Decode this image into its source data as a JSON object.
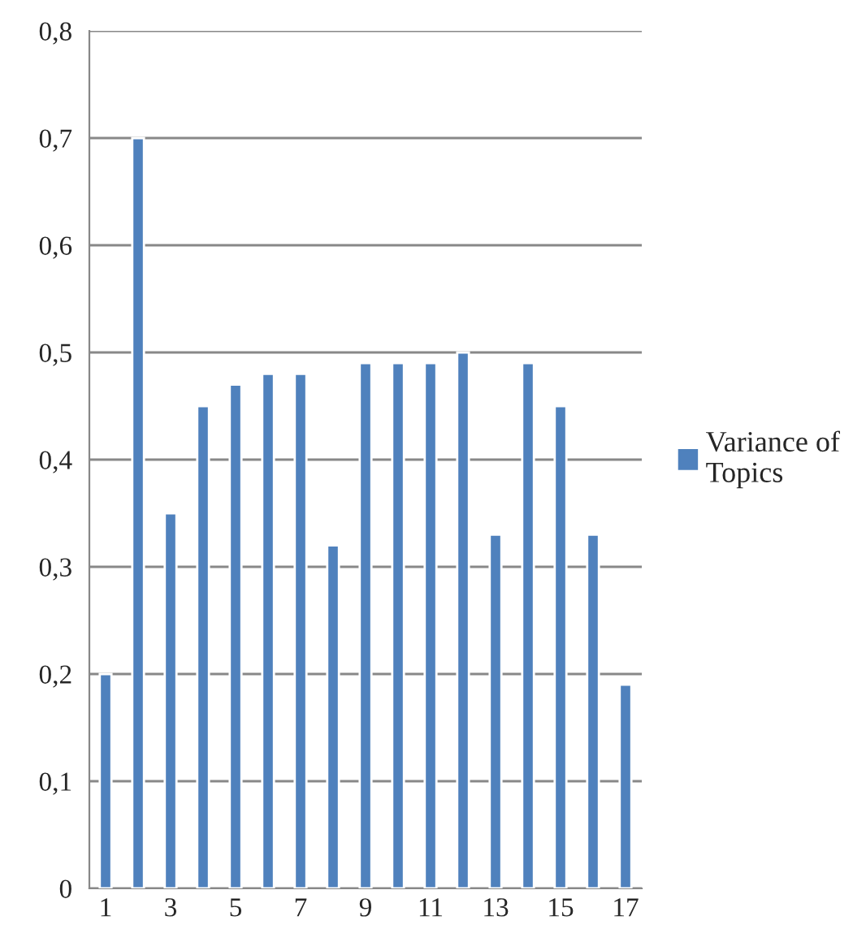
{
  "chart_data": {
    "type": "bar",
    "categories": [
      "1",
      null,
      "3",
      null,
      "5",
      null,
      "7",
      null,
      "9",
      null,
      "11",
      null,
      "13",
      null,
      "15",
      null,
      "17"
    ],
    "series": [
      {
        "name": "Variance of Topics",
        "color": "#4f81bd",
        "values": [
          0.2,
          0.7,
          0.35,
          0.45,
          0.47,
          0.48,
          0.48,
          0.32,
          0.49,
          0.49,
          0.49,
          0.5,
          0.33,
          0.49,
          0.45,
          0.33,
          0.19
        ]
      }
    ],
    "ylim": [
      0,
      0.8
    ],
    "yticks": [
      0,
      {
        "value": 0.1,
        "label": "0,1"
      },
      {
        "value": 0.2,
        "label": "0,2"
      },
      {
        "value": 0.3,
        "label": "0,3"
      },
      {
        "value": 0.4,
        "label": "0,4"
      },
      {
        "value": 0.5,
        "label": "0,5"
      },
      {
        "value": 0.6,
        "label": "0,6"
      },
      {
        "value": 0.7,
        "label": "0,7"
      },
      {
        "value": 0.8,
        "label": "0,8"
      }
    ],
    "grid": "y",
    "legend": "right"
  }
}
